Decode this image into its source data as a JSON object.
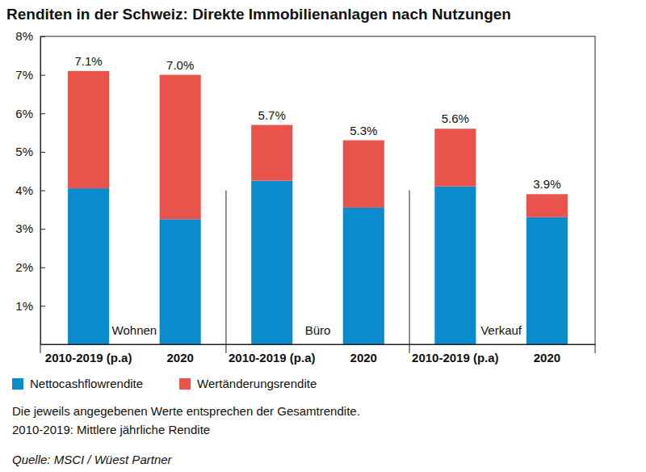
{
  "chart_data": {
    "type": "bar",
    "title": "Renditen in der Schweiz: Direkte Immobilienanlagen nach Nutzungen",
    "stacked": true,
    "legend": "bottom",
    "categories": [
      "2010-2019 (p.a)",
      "2020",
      "2010-2019 (p.a)",
      "2020",
      "2010-2019 (p.a)",
      "2020"
    ],
    "groups": [
      "Wohnen",
      "Büro",
      "Verkauf"
    ],
    "series": [
      {
        "name": "Nettocashflowrendite",
        "color": "#0a8ccc",
        "values": [
          4.05,
          3.25,
          4.25,
          3.55,
          4.1,
          3.3
        ]
      },
      {
        "name": "Wertänderungsrendite",
        "color": "#e8534b",
        "values": [
          3.05,
          3.75,
          1.45,
          1.75,
          1.5,
          0.6
        ]
      }
    ],
    "totals": [
      7.1,
      7.0,
      5.7,
      5.3,
      5.6,
      3.9
    ],
    "total_labels": [
      "7.1%",
      "7.0%",
      "5.7%",
      "5.3%",
      "5.6%",
      "3.9%"
    ],
    "ylim": [
      0,
      8
    ],
    "yticks": [
      {
        "value": 1,
        "label": "1%"
      },
      {
        "value": 2,
        "label": "2%"
      },
      {
        "value": 3,
        "label": "3%"
      },
      {
        "value": 4,
        "label": "4%"
      },
      {
        "value": 5,
        "label": "5%"
      },
      {
        "value": 6,
        "label": "6%"
      },
      {
        "value": 7,
        "label": "7%"
      },
      {
        "value": 8,
        "label": "8%"
      }
    ],
    "grid": false,
    "notes": [
      "Die jeweils angegebenen Werte entsprechen der Gesamtrendite.",
      "2010-2019: Mittlere jährliche Rendite"
    ],
    "source": "Quelle: MSCI / Wüest Partner"
  }
}
